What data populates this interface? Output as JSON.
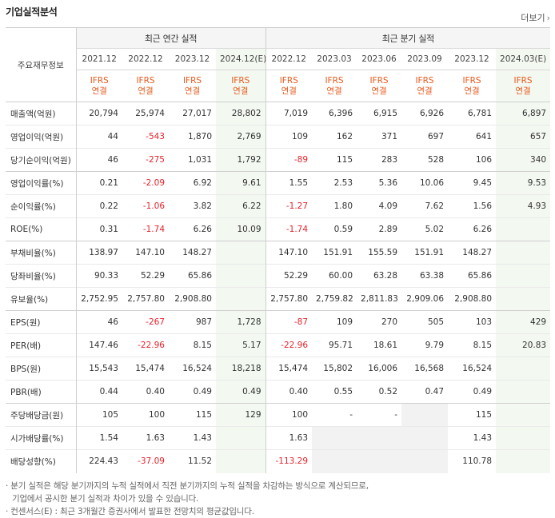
{
  "header": {
    "title": "기업실적분석",
    "more_label": "더보기",
    "more_icon": "chevron-right-icon"
  },
  "table": {
    "rowhead_label": "주요재무정보",
    "groups": {
      "annual": "최근 연간 실적",
      "quarter": "최근 분기 실적"
    },
    "annual_periods": [
      "2021.12",
      "2022.12",
      "2023.12",
      "2024.12(E)"
    ],
    "quarter_periods": [
      "2022.12",
      "2023.03",
      "2023.06",
      "2023.09",
      "2023.12",
      "2024.03(E)"
    ],
    "ifrs_top": "IFRS",
    "ifrs_bottom": "연결",
    "rows": [
      {
        "label": "매출액(억원)",
        "annual": [
          "20,794",
          "25,974",
          "27,017",
          "28,802"
        ],
        "quarter": [
          "7,019",
          "6,396",
          "6,915",
          "6,926",
          "6,781",
          "6,897"
        ]
      },
      {
        "label": "영업이익(억원)",
        "annual": [
          "44",
          "-543",
          "1,870",
          "2,769"
        ],
        "quarter": [
          "109",
          "162",
          "371",
          "697",
          "641",
          "657"
        ]
      },
      {
        "label": "당기순이익(억원)",
        "annual": [
          "46",
          "-275",
          "1,031",
          "1,792"
        ],
        "quarter": [
          "-89",
          "115",
          "283",
          "528",
          "106",
          "340"
        ]
      },
      {
        "label": "영업이익률(%)",
        "annual": [
          "0.21",
          "-2.09",
          "6.92",
          "9.61"
        ],
        "quarter": [
          "1.55",
          "2.53",
          "5.36",
          "10.06",
          "9.45",
          "9.53"
        ]
      },
      {
        "label": "순이익률(%)",
        "annual": [
          "0.22",
          "-1.06",
          "3.82",
          "6.22"
        ],
        "quarter": [
          "-1.27",
          "1.80",
          "4.09",
          "7.62",
          "1.56",
          "4.93"
        ]
      },
      {
        "label": "ROE(%)",
        "annual": [
          "0.31",
          "-1.74",
          "6.26",
          "10.09"
        ],
        "quarter": [
          "-1.74",
          "0.59",
          "2.89",
          "5.02",
          "6.26",
          ""
        ]
      },
      {
        "label": "부채비율(%)",
        "annual": [
          "138.97",
          "147.10",
          "148.27",
          ""
        ],
        "quarter": [
          "147.10",
          "151.91",
          "155.59",
          "151.91",
          "148.27",
          ""
        ]
      },
      {
        "label": "당좌비율(%)",
        "annual": [
          "90.33",
          "52.29",
          "65.86",
          ""
        ],
        "quarter": [
          "52.29",
          "60.00",
          "63.28",
          "63.38",
          "65.86",
          ""
        ]
      },
      {
        "label": "유보율(%)",
        "annual": [
          "2,752.95",
          "2,757.80",
          "2,908.80",
          ""
        ],
        "quarter": [
          "2,757.80",
          "2,759.82",
          "2,811.83",
          "2,909.06",
          "2,908.80",
          ""
        ]
      },
      {
        "label": "EPS(원)",
        "annual": [
          "46",
          "-267",
          "987",
          "1,728"
        ],
        "quarter": [
          "-87",
          "109",
          "270",
          "505",
          "103",
          "429"
        ]
      },
      {
        "label": "PER(배)",
        "annual": [
          "147.46",
          "-22.96",
          "8.15",
          "5.17"
        ],
        "quarter": [
          "-22.96",
          "95.71",
          "18.61",
          "9.79",
          "8.15",
          "20.83"
        ]
      },
      {
        "label": "BPS(원)",
        "annual": [
          "15,543",
          "15,474",
          "16,524",
          "18,218"
        ],
        "quarter": [
          "15,474",
          "15,802",
          "16,006",
          "16,568",
          "16,524",
          ""
        ]
      },
      {
        "label": "PBR(배)",
        "annual": [
          "0.44",
          "0.40",
          "0.49",
          "0.49"
        ],
        "quarter": [
          "0.40",
          "0.55",
          "0.52",
          "0.47",
          "0.49",
          ""
        ]
      },
      {
        "label": "주당배당금(원)",
        "annual": [
          "105",
          "100",
          "115",
          "129"
        ],
        "quarter": [
          "100",
          "-",
          "-",
          "",
          "115",
          ""
        ]
      },
      {
        "label": "시가배당률(%)",
        "annual": [
          "1.54",
          "1.63",
          "1.43",
          ""
        ],
        "quarter": [
          "1.63",
          "",
          "",
          "",
          "1.43",
          ""
        ]
      },
      {
        "label": "배당성향(%)",
        "annual": [
          "224.43",
          "-37.09",
          "11.52",
          ""
        ],
        "quarter": [
          "-113.29",
          "",
          "",
          "",
          "110.78",
          ""
        ]
      }
    ]
  },
  "notes": [
    "· 분기 실적은 해당 분기까지의 누적 실적에서 직전 분기까지의 누적 실적을 차감하는 방식으로 계산되므로,",
    "기업에서 공시한 분기 실적과 차이가 있을 수 있습니다.",
    "· 컨센서스(E) : 최근 3개월간 증권사에서 발표한 전망치의 평균값입니다."
  ],
  "colors": {
    "negative": "#e8222b",
    "ifrs": "#e8591b",
    "estimate_bg": "#f3f8f1"
  }
}
